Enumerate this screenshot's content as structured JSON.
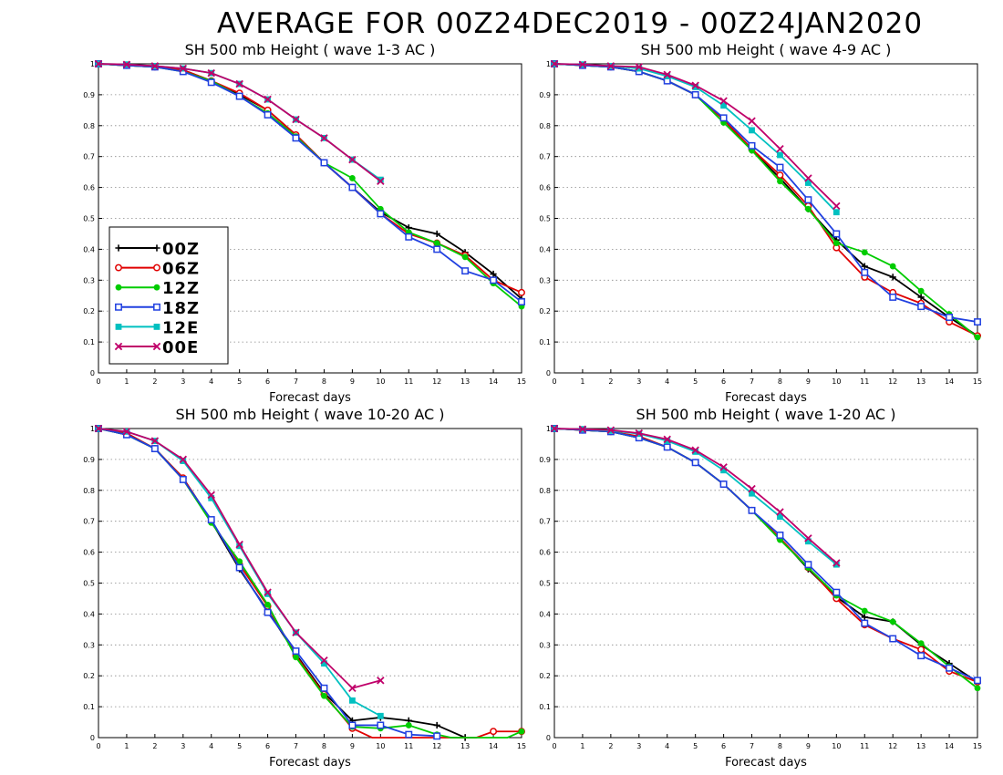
{
  "main_title": "AVERAGE FOR 00Z24DEC2019 - 00Z24JAN2020",
  "colors": {
    "00Z": "#000000",
    "06Z": "#e00000",
    "12Z": "#00cc00",
    "18Z": "#2040e0",
    "12E": "#00c0c0",
    "00E": "#c0006a"
  },
  "chart_data": [
    {
      "type": "line",
      "title": "SH 500 mb Height ( wave 1-3 AC )",
      "xlabel": "Forecast days",
      "ylabel": "",
      "xlim": [
        0,
        15
      ],
      "ylim": [
        0,
        1
      ],
      "x_ticks": [
        "0",
        "1",
        "2",
        "3",
        "4",
        "5",
        "6",
        "7",
        "8",
        "9",
        "10",
        "11",
        "12",
        "13",
        "14",
        "15"
      ],
      "y_ticks": [
        "0",
        "0.1",
        "0.2",
        "0.3",
        "0.4",
        "0.5",
        "0.6",
        "0.7",
        "0.8",
        "0.9",
        "1"
      ],
      "grid": true,
      "legend": {
        "position": "left",
        "entries": [
          "00Z",
          "06Z",
          "12Z",
          "18Z",
          "12E",
          "00E"
        ]
      },
      "series": [
        {
          "name": "00Z",
          "marker": "plus",
          "x": [
            0,
            1,
            2,
            3,
            4,
            5,
            6,
            7,
            8,
            9,
            10,
            11,
            12,
            13,
            14,
            15
          ],
          "y": [
            1,
            0.995,
            0.99,
            0.98,
            0.945,
            0.9,
            0.85,
            0.77,
            0.68,
            0.6,
            0.52,
            0.47,
            0.45,
            0.39,
            0.32,
            0.24
          ]
        },
        {
          "name": "06Z",
          "marker": "circle",
          "x": [
            0,
            1,
            2,
            3,
            4,
            5,
            6,
            7,
            8,
            9,
            10,
            11,
            12,
            13,
            14,
            15
          ],
          "y": [
            1,
            0.995,
            0.99,
            0.98,
            0.945,
            0.905,
            0.85,
            0.77,
            0.68,
            0.6,
            0.515,
            0.45,
            0.42,
            0.38,
            0.3,
            0.26
          ]
        },
        {
          "name": "12Z",
          "marker": "dot",
          "x": [
            0,
            1,
            2,
            3,
            4,
            5,
            6,
            7,
            8,
            9,
            10,
            11,
            12,
            13,
            14,
            15
          ],
          "y": [
            1,
            0.995,
            0.99,
            0.975,
            0.945,
            0.895,
            0.84,
            0.765,
            0.68,
            0.63,
            0.53,
            0.455,
            0.42,
            0.375,
            0.29,
            0.215
          ]
        },
        {
          "name": "18Z",
          "marker": "square",
          "x": [
            0,
            1,
            2,
            3,
            4,
            5,
            6,
            7,
            8,
            9,
            10,
            11,
            12,
            13,
            14,
            15
          ],
          "y": [
            1,
            0.995,
            0.99,
            0.975,
            0.94,
            0.895,
            0.835,
            0.76,
            0.68,
            0.6,
            0.515,
            0.44,
            0.4,
            0.33,
            0.3,
            0.23
          ]
        },
        {
          "name": "12E",
          "marker": "filled-square",
          "x": [
            0,
            1,
            2,
            3,
            4,
            5,
            6,
            7,
            8,
            9,
            10
          ],
          "y": [
            1,
            0.998,
            0.993,
            0.985,
            0.97,
            0.935,
            0.885,
            0.82,
            0.76,
            0.69,
            0.625
          ]
        },
        {
          "name": "00E",
          "marker": "x",
          "x": [
            0,
            1,
            2,
            3,
            4,
            5,
            6,
            7,
            8,
            9,
            10
          ],
          "y": [
            1,
            0.998,
            0.993,
            0.985,
            0.97,
            0.935,
            0.885,
            0.82,
            0.76,
            0.69,
            0.62
          ]
        }
      ]
    },
    {
      "type": "line",
      "title": "SH 500 mb Height ( wave 4-9 AC )",
      "xlabel": "Forecast days",
      "ylabel": "",
      "xlim": [
        0,
        15
      ],
      "ylim": [
        0,
        1
      ],
      "x_ticks": [
        "0",
        "1",
        "2",
        "3",
        "4",
        "5",
        "6",
        "7",
        "8",
        "9",
        "10",
        "11",
        "12",
        "13",
        "14",
        "15"
      ],
      "y_ticks": [
        "0",
        "0.1",
        "0.2",
        "0.3",
        "0.4",
        "0.5",
        "0.6",
        "0.7",
        "0.8",
        "0.9",
        "1"
      ],
      "grid": true,
      "series": [
        {
          "name": "00Z",
          "marker": "plus",
          "x": [
            0,
            1,
            2,
            3,
            4,
            5,
            6,
            7,
            8,
            9,
            10,
            11,
            12,
            13,
            14,
            15
          ],
          "y": [
            1,
            0.995,
            0.99,
            0.975,
            0.945,
            0.9,
            0.82,
            0.72,
            0.63,
            0.53,
            0.43,
            0.345,
            0.31,
            0.245,
            0.18,
            0.12
          ]
        },
        {
          "name": "06Z",
          "marker": "circle",
          "x": [
            0,
            1,
            2,
            3,
            4,
            5,
            6,
            7,
            8,
            9,
            10,
            11,
            12,
            13,
            14,
            15
          ],
          "y": [
            1,
            0.995,
            0.99,
            0.975,
            0.945,
            0.9,
            0.82,
            0.725,
            0.64,
            0.54,
            0.405,
            0.31,
            0.26,
            0.225,
            0.165,
            0.12
          ]
        },
        {
          "name": "12Z",
          "marker": "dot",
          "x": [
            0,
            1,
            2,
            3,
            4,
            5,
            6,
            7,
            8,
            9,
            10,
            11,
            12,
            13,
            14,
            15
          ],
          "y": [
            1,
            0.995,
            0.99,
            0.975,
            0.945,
            0.9,
            0.81,
            0.72,
            0.62,
            0.53,
            0.42,
            0.39,
            0.345,
            0.265,
            0.19,
            0.115
          ]
        },
        {
          "name": "18Z",
          "marker": "square",
          "x": [
            0,
            1,
            2,
            3,
            4,
            5,
            6,
            7,
            8,
            9,
            10,
            11,
            12,
            13,
            14,
            15
          ],
          "y": [
            1,
            0.995,
            0.99,
            0.975,
            0.945,
            0.9,
            0.825,
            0.735,
            0.665,
            0.56,
            0.45,
            0.325,
            0.245,
            0.215,
            0.18,
            0.165
          ]
        },
        {
          "name": "12E",
          "marker": "filled-square",
          "x": [
            0,
            1,
            2,
            3,
            4,
            5,
            6,
            7,
            8,
            9,
            10
          ],
          "y": [
            1,
            0.998,
            0.993,
            0.985,
            0.96,
            0.925,
            0.865,
            0.785,
            0.705,
            0.615,
            0.52
          ]
        },
        {
          "name": "00E",
          "marker": "x",
          "x": [
            0,
            1,
            2,
            3,
            4,
            5,
            6,
            7,
            8,
            9,
            10
          ],
          "y": [
            1,
            0.998,
            0.993,
            0.99,
            0.965,
            0.93,
            0.88,
            0.815,
            0.725,
            0.63,
            0.54
          ]
        }
      ]
    },
    {
      "type": "line",
      "title": "SH 500 mb Height ( wave 10-20 AC )",
      "xlabel": "Forecast days",
      "ylabel": "",
      "xlim": [
        0,
        15
      ],
      "ylim": [
        0,
        1
      ],
      "x_ticks": [
        "0",
        "1",
        "2",
        "3",
        "4",
        "5",
        "6",
        "7",
        "8",
        "9",
        "10",
        "11",
        "12",
        "13",
        "14",
        "15"
      ],
      "y_ticks": [
        "0",
        "0.1",
        "0.2",
        "0.3",
        "0.4",
        "0.5",
        "0.6",
        "0.7",
        "0.8",
        "0.9",
        "1"
      ],
      "grid": true,
      "series": [
        {
          "name": "00Z",
          "marker": "plus",
          "x": [
            0,
            1,
            2,
            3,
            4,
            5,
            6,
            7,
            8,
            9,
            10,
            11,
            12,
            13
          ],
          "y": [
            1,
            0.98,
            0.935,
            0.84,
            0.7,
            0.545,
            0.41,
            0.27,
            0.145,
            0.055,
            0.065,
            0.055,
            0.04,
            0
          ]
        },
        {
          "name": "06Z",
          "marker": "circle",
          "x": [
            0,
            1,
            2,
            3,
            4,
            5,
            6,
            7,
            8,
            9,
            9.7,
            13.4,
            14,
            15
          ],
          "y": [
            1,
            0.985,
            0.935,
            0.84,
            0.7,
            0.56,
            0.425,
            0.265,
            0.14,
            0.03,
            0,
            0,
            0.02,
            0.02
          ]
        },
        {
          "name": "12Z",
          "marker": "dot",
          "x": [
            0,
            1,
            2,
            3,
            4,
            5,
            6,
            7,
            8,
            9,
            10,
            11,
            12,
            12.5,
            14.5,
            15
          ],
          "y": [
            1,
            0.98,
            0.935,
            0.835,
            0.695,
            0.57,
            0.43,
            0.26,
            0.135,
            0.035,
            0.03,
            0.04,
            0.01,
            0,
            0,
            0.02
          ]
        },
        {
          "name": "18Z",
          "marker": "square",
          "x": [
            0,
            1,
            2,
            3,
            4,
            5,
            6,
            7,
            8,
            9,
            10,
            11,
            12
          ],
          "y": [
            1,
            0.98,
            0.935,
            0.835,
            0.705,
            0.55,
            0.405,
            0.28,
            0.16,
            0.04,
            0.04,
            0.01,
            0.005
          ]
        },
        {
          "name": "12E",
          "marker": "filled-square",
          "x": [
            0,
            1,
            2,
            3,
            4,
            5,
            6,
            7,
            8,
            9,
            10
          ],
          "y": [
            1,
            0.99,
            0.96,
            0.895,
            0.775,
            0.62,
            0.465,
            0.34,
            0.24,
            0.12,
            0.07
          ]
        },
        {
          "name": "00E",
          "marker": "x",
          "x": [
            0,
            1,
            2,
            3,
            4,
            5,
            6,
            7,
            8,
            9,
            10
          ],
          "y": [
            1,
            0.99,
            0.96,
            0.9,
            0.785,
            0.625,
            0.47,
            0.34,
            0.25,
            0.16,
            0.185
          ]
        }
      ]
    },
    {
      "type": "line",
      "title": "SH 500 mb Height ( wave 1-20 AC )",
      "xlabel": "Forecast days",
      "ylabel": "",
      "xlim": [
        0,
        15
      ],
      "ylim": [
        0,
        1
      ],
      "x_ticks": [
        "0",
        "1",
        "2",
        "3",
        "4",
        "5",
        "6",
        "7",
        "8",
        "9",
        "10",
        "11",
        "12",
        "13",
        "14",
        "15"
      ],
      "y_ticks": [
        "0",
        "0.1",
        "0.2",
        "0.3",
        "0.4",
        "0.5",
        "0.6",
        "0.7",
        "0.8",
        "0.9",
        "1"
      ],
      "grid": true,
      "series": [
        {
          "name": "00Z",
          "marker": "plus",
          "x": [
            0,
            1,
            2,
            3,
            4,
            5,
            6,
            7,
            8,
            9,
            10,
            11,
            12,
            13,
            14,
            15
          ],
          "y": [
            1,
            0.995,
            0.99,
            0.97,
            0.94,
            0.89,
            0.82,
            0.735,
            0.645,
            0.545,
            0.455,
            0.39,
            0.375,
            0.3,
            0.24,
            0.18
          ]
        },
        {
          "name": "06Z",
          "marker": "circle",
          "x": [
            0,
            1,
            2,
            3,
            4,
            5,
            6,
            7,
            8,
            9,
            10,
            11,
            12,
            13,
            14,
            15
          ],
          "y": [
            1,
            0.995,
            0.99,
            0.975,
            0.94,
            0.89,
            0.82,
            0.735,
            0.645,
            0.55,
            0.45,
            0.365,
            0.32,
            0.285,
            0.215,
            0.18
          ]
        },
        {
          "name": "12Z",
          "marker": "dot",
          "x": [
            0,
            1,
            2,
            3,
            4,
            5,
            6,
            7,
            8,
            9,
            10,
            11,
            12,
            13,
            14,
            15
          ],
          "y": [
            1,
            0.995,
            0.99,
            0.97,
            0.94,
            0.89,
            0.82,
            0.735,
            0.64,
            0.55,
            0.46,
            0.41,
            0.375,
            0.305,
            0.23,
            0.16
          ]
        },
        {
          "name": "18Z",
          "marker": "square",
          "x": [
            0,
            1,
            2,
            3,
            4,
            5,
            6,
            7,
            8,
            9,
            10,
            11,
            12,
            13,
            14,
            15
          ],
          "y": [
            1,
            0.995,
            0.99,
            0.97,
            0.94,
            0.89,
            0.82,
            0.735,
            0.655,
            0.56,
            0.47,
            0.37,
            0.32,
            0.265,
            0.225,
            0.185
          ]
        },
        {
          "name": "12E",
          "marker": "filled-square",
          "x": [
            0,
            1,
            2,
            3,
            4,
            5,
            6,
            7,
            8,
            9,
            10
          ],
          "y": [
            1,
            0.998,
            0.993,
            0.983,
            0.96,
            0.925,
            0.865,
            0.79,
            0.715,
            0.635,
            0.56
          ]
        },
        {
          "name": "00E",
          "marker": "x",
          "x": [
            0,
            1,
            2,
            3,
            4,
            5,
            6,
            7,
            8,
            9,
            10
          ],
          "y": [
            1,
            0.998,
            0.995,
            0.985,
            0.965,
            0.93,
            0.875,
            0.805,
            0.73,
            0.645,
            0.565
          ]
        }
      ]
    }
  ]
}
